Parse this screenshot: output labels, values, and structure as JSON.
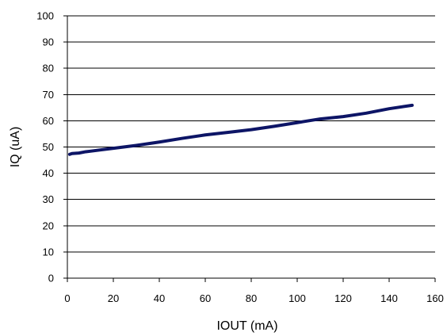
{
  "chart_data": {
    "type": "line",
    "title": "",
    "xlabel": "IOUT (mA)",
    "ylabel": "IQ (uA)",
    "xlim": [
      0,
      160
    ],
    "ylim": [
      0,
      100
    ],
    "x_ticks": [
      "0",
      "20",
      "40",
      "60",
      "80",
      "100",
      "120",
      "140",
      "160"
    ],
    "y_ticks": [
      "0",
      "10",
      "20",
      "30",
      "40",
      "50",
      "60",
      "70",
      "80",
      "90",
      "100"
    ],
    "grid": "horizontal",
    "legend": "none",
    "series": [
      {
        "color": "#0d1566",
        "x": [
          1,
          2,
          5,
          8,
          10,
          20,
          30,
          40,
          50,
          60,
          70,
          80,
          90,
          100,
          110,
          120,
          130,
          140,
          150
        ],
        "y": [
          47.2,
          47.5,
          47.7,
          48.2,
          48.4,
          49.5,
          50.6,
          51.9,
          53.3,
          54.6,
          55.6,
          56.6,
          57.9,
          59.3,
          60.7,
          61.6,
          62.9,
          64.6,
          65.9
        ]
      }
    ]
  }
}
